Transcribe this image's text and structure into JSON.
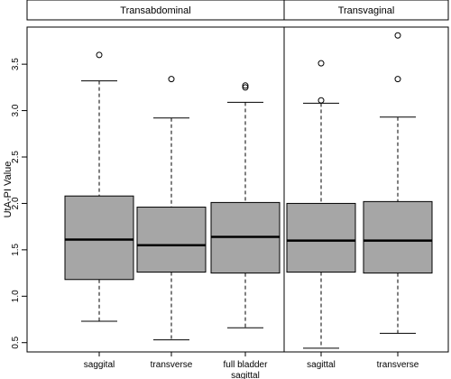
{
  "chart_data": {
    "type": "boxplot",
    "title": "",
    "xlabel": "",
    "ylabel": "UtA-PI Value",
    "ylim": [
      0.4,
      3.9
    ],
    "yticks": [
      "0.5",
      "1.0",
      "1.5",
      "2.0",
      "2.5",
      "3.0",
      "3.5"
    ],
    "grid": false,
    "panels": [
      {
        "label": "Transabdominal",
        "boxes": [
          {
            "label": "saggital",
            "lower_whisker": 0.73,
            "q1": 1.18,
            "median": 1.61,
            "q3": 2.08,
            "upper_whisker": 3.32,
            "outliers": [
              3.6
            ]
          },
          {
            "label": "transverse",
            "lower_whisker": 0.53,
            "q1": 1.26,
            "median": 1.55,
            "q3": 1.96,
            "upper_whisker": 2.92,
            "outliers": [
              3.34
            ]
          },
          {
            "label": "full bladder sagittal",
            "label_lines": [
              "full bladder",
              "sagittal"
            ],
            "lower_whisker": 0.66,
            "q1": 1.25,
            "median": 1.64,
            "q3": 2.01,
            "upper_whisker": 3.09,
            "outliers": [
              3.25,
              3.27
            ]
          }
        ]
      },
      {
        "label": "Transvaginal",
        "boxes": [
          {
            "label": "sagittal",
            "lower_whisker": 0.44,
            "q1": 1.26,
            "median": 1.6,
            "q3": 2.0,
            "upper_whisker": 3.08,
            "outliers": [
              3.11,
              3.51
            ]
          },
          {
            "label": "transverse",
            "lower_whisker": 0.6,
            "q1": 1.25,
            "median": 1.6,
            "q3": 2.02,
            "upper_whisker": 2.93,
            "outliers": [
              3.34,
              3.81
            ]
          }
        ]
      }
    ],
    "colors": {
      "box_fill": "#a6a6a6",
      "stroke": "#000000",
      "background": "#ffffff"
    }
  }
}
